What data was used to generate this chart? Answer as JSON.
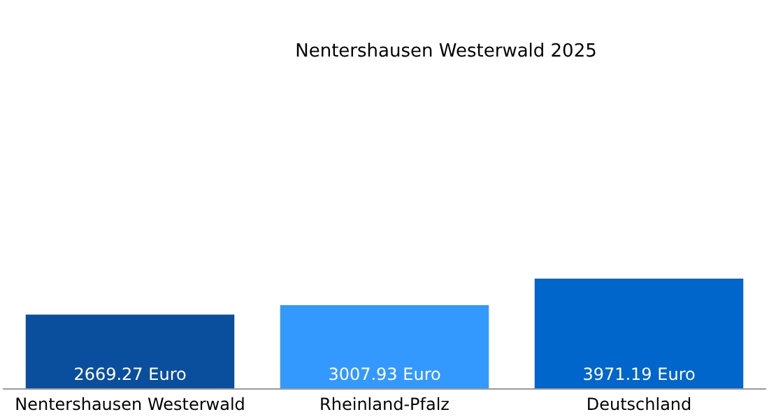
{
  "chart_data": {
    "type": "bar",
    "title": "Nentershausen Westerwald 2025",
    "categories": [
      "Nentershausen Westerwald",
      "Rheinland-Pfalz",
      "Deutschland"
    ],
    "values": [
      2669.27,
      3007.93,
      3971.19
    ],
    "colors": [
      "#0a4f9e",
      "#3399ff",
      "#0066cc"
    ],
    "value_labels": [
      "2669.27 Euro",
      "3007.93 Euro",
      "3971.19 Euro"
    ]
  }
}
